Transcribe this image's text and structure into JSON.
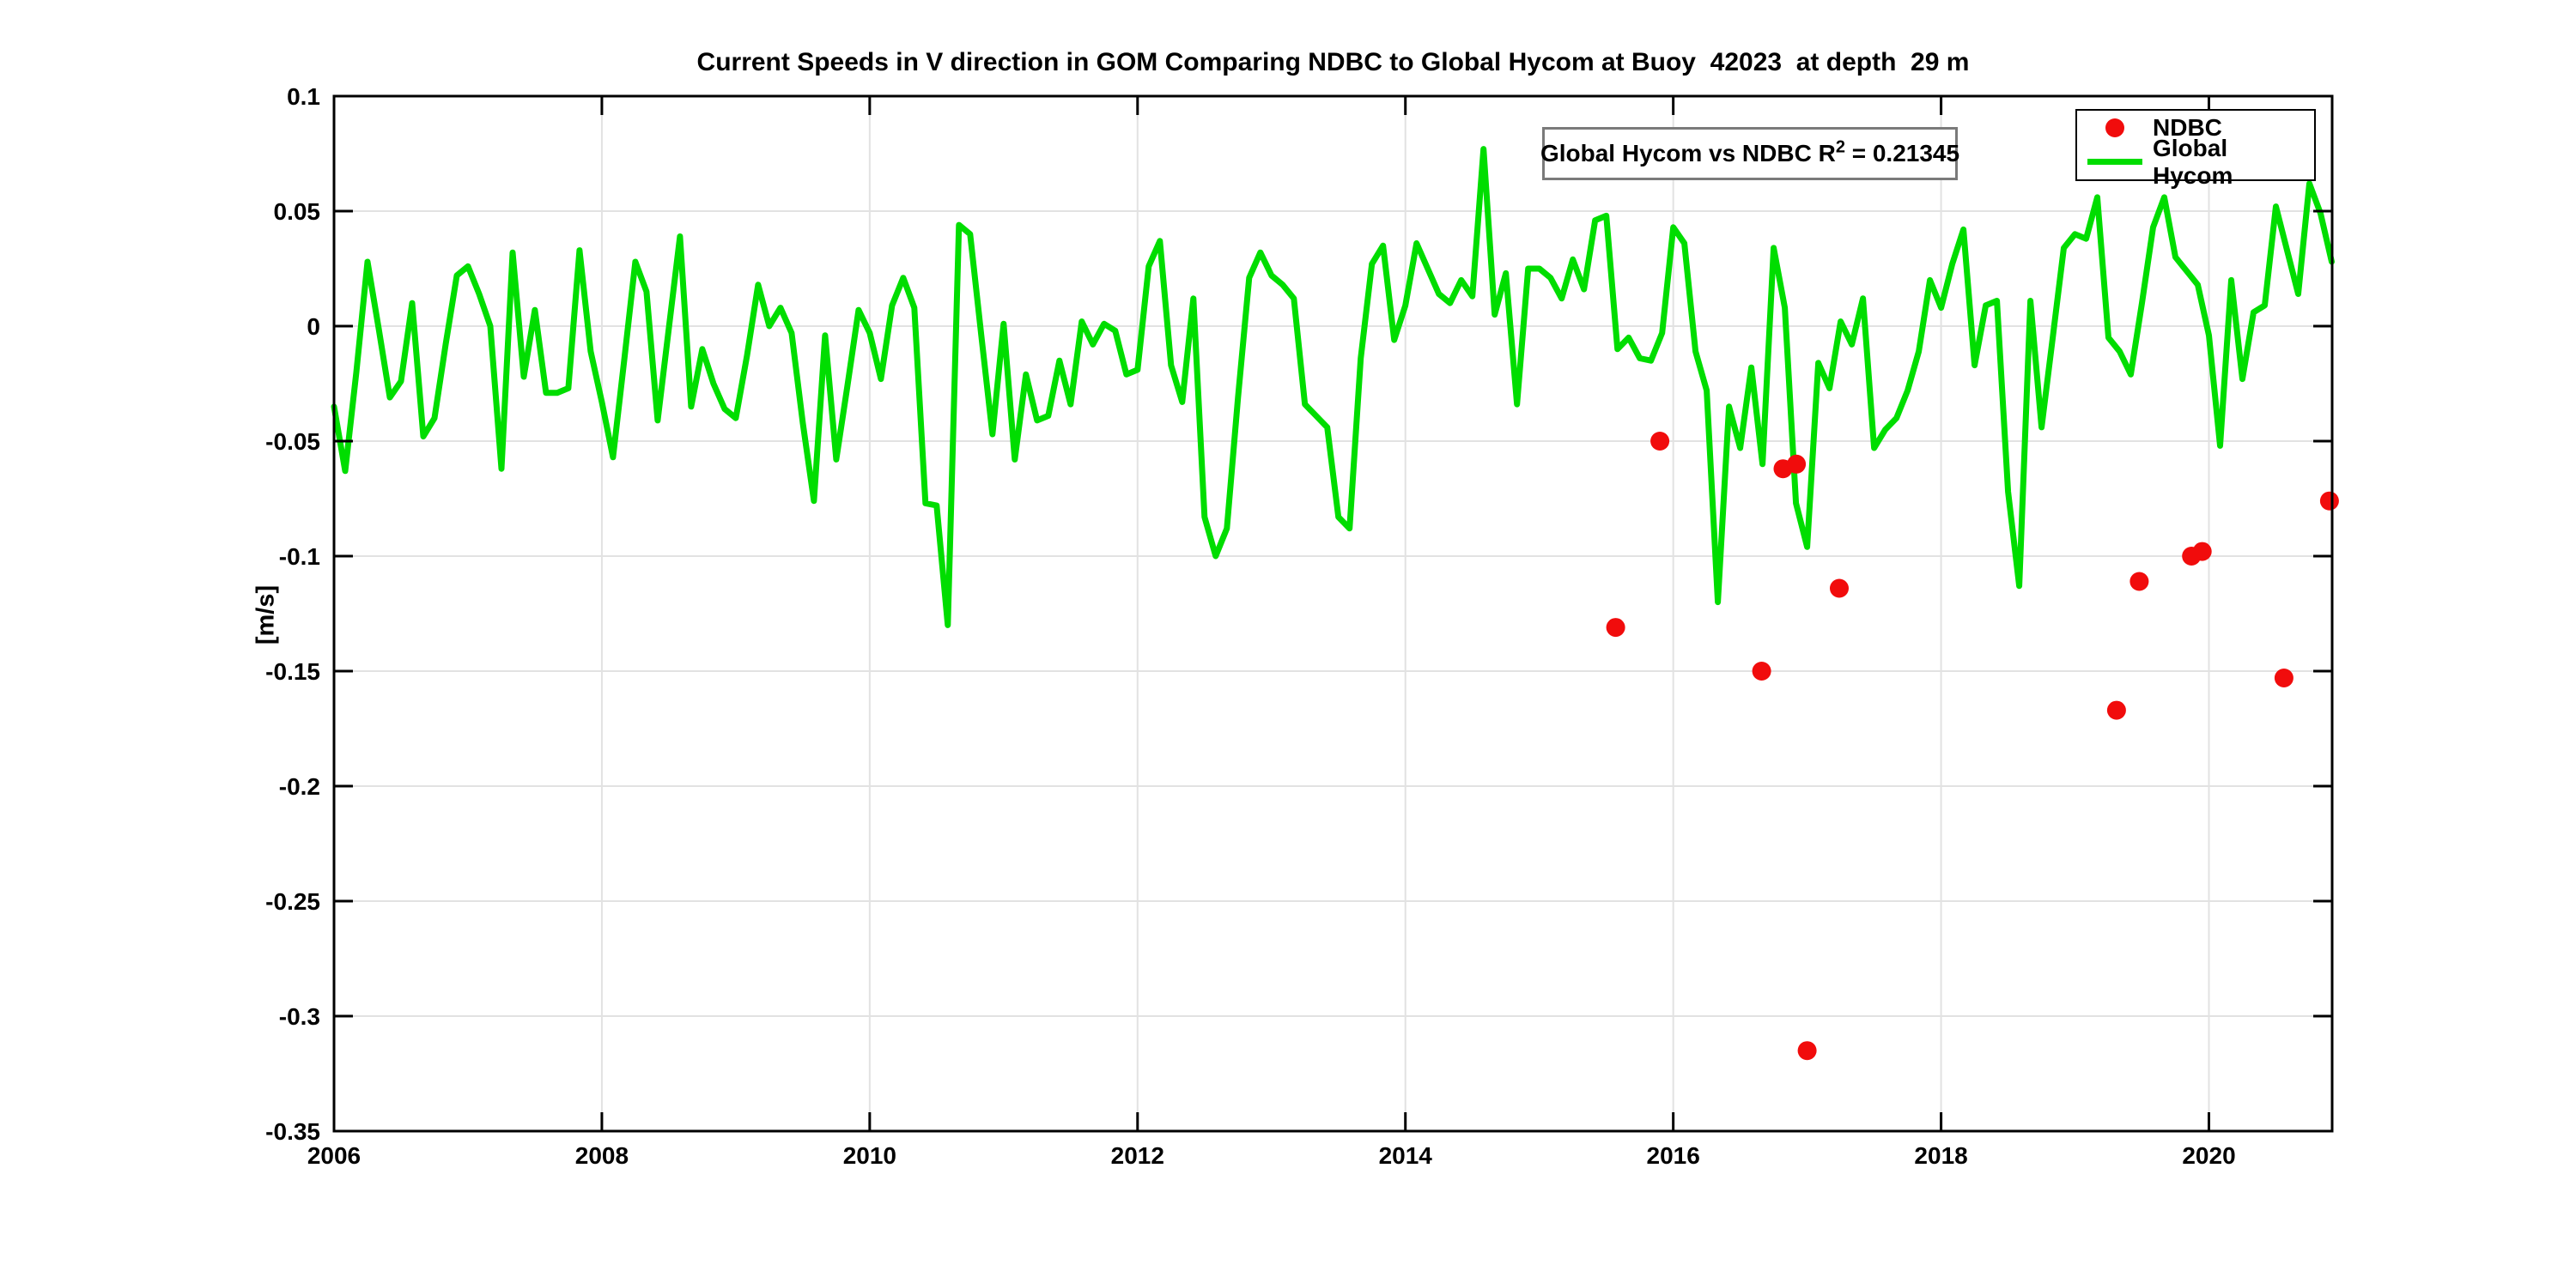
{
  "chart_data": {
    "type": "line+scatter",
    "title": "Current Speeds in V direction in GOM Comparing NDBC to Global Hycom at Buoy  42023  at depth  29 m",
    "xlabel": "",
    "ylabel": "[m/s]",
    "xlim": [
      2006,
      2020.92
    ],
    "ylim": [
      -0.35,
      0.1
    ],
    "x_ticks": [
      2006,
      2008,
      2010,
      2012,
      2014,
      2016,
      2018,
      2020
    ],
    "y_ticks": [
      0.1,
      0.05,
      0,
      -0.05,
      -0.1,
      -0.15,
      -0.2,
      -0.25,
      -0.3,
      -0.35
    ],
    "y_tick_labels": [
      "0.1",
      "0.05",
      "0",
      "-0.05",
      "-0.1",
      "-0.15",
      "-0.2",
      "-0.25",
      "-0.3",
      "-0.35"
    ],
    "grid": true,
    "legend_position": "top-right",
    "annotation": {
      "prefix": "Global Hycom vs NDBC R",
      "sup": "2",
      "suffix": " = 0.21345"
    },
    "series": [
      {
        "name": "NDBC",
        "type": "scatter",
        "color": "#f10c0c",
        "points": [
          [
            2015.57,
            -0.131
          ],
          [
            2015.9,
            -0.05
          ],
          [
            2016.66,
            -0.15
          ],
          [
            2016.82,
            -0.062
          ],
          [
            2016.92,
            -0.06
          ],
          [
            2017.0,
            -0.315
          ],
          [
            2017.24,
            -0.114
          ],
          [
            2019.31,
            -0.167
          ],
          [
            2019.48,
            -0.111
          ],
          [
            2019.87,
            -0.1
          ],
          [
            2019.95,
            -0.098
          ],
          [
            2020.56,
            -0.153
          ],
          [
            2020.9,
            -0.076
          ]
        ]
      },
      {
        "name": "Global Hycom",
        "type": "line",
        "color": "#00dd00",
        "x_start": 2006.0,
        "x_step": 0.08333,
        "values": [
          -0.035,
          -0.063,
          -0.02,
          0.028,
          -0.001,
          -0.031,
          -0.024,
          0.01,
          -0.048,
          -0.04,
          -0.008,
          0.022,
          0.026,
          0.014,
          0.0,
          -0.062,
          0.032,
          -0.022,
          0.007,
          -0.029,
          -0.029,
          -0.027,
          0.033,
          -0.011,
          -0.033,
          -0.057,
          -0.015,
          0.028,
          0.015,
          -0.041,
          -0.001,
          0.039,
          -0.035,
          -0.01,
          -0.025,
          -0.036,
          -0.04,
          -0.013,
          0.018,
          0.0,
          0.008,
          -0.003,
          -0.042,
          -0.076,
          -0.004,
          -0.058,
          -0.026,
          0.007,
          -0.003,
          -0.023,
          0.009,
          0.021,
          0.008,
          -0.077,
          -0.078,
          -0.13,
          0.044,
          0.04,
          -0.004,
          -0.047,
          0.001,
          -0.058,
          -0.021,
          -0.041,
          -0.039,
          -0.015,
          -0.034,
          0.002,
          -0.008,
          0.001,
          -0.002,
          -0.021,
          -0.019,
          0.026,
          0.037,
          -0.017,
          -0.033,
          0.012,
          -0.083,
          -0.1,
          -0.088,
          -0.031,
          0.021,
          0.032,
          0.022,
          0.018,
          0.012,
          -0.034,
          -0.039,
          -0.044,
          -0.083,
          -0.088,
          -0.014,
          0.027,
          0.035,
          -0.006,
          0.009,
          0.036,
          0.025,
          0.014,
          0.01,
          0.02,
          0.013,
          0.077,
          0.005,
          0.023,
          -0.034,
          0.025,
          0.025,
          0.021,
          0.012,
          0.029,
          0.016,
          0.046,
          0.048,
          -0.01,
          -0.005,
          -0.014,
          -0.015,
          -0.003,
          0.043,
          0.036,
          -0.011,
          -0.028,
          -0.12,
          -0.035,
          -0.053,
          -0.018,
          -0.06,
          0.034,
          0.008,
          -0.077,
          -0.096,
          -0.016,
          -0.027,
          0.002,
          -0.008,
          0.012,
          -0.053,
          -0.045,
          -0.04,
          -0.028,
          -0.011,
          0.02,
          0.008,
          0.027,
          0.042,
          -0.017,
          0.009,
          0.011,
          -0.072,
          -0.113,
          0.011,
          -0.044,
          -0.005,
          0.034,
          0.04,
          0.038,
          0.056,
          -0.005,
          -0.011,
          -0.021,
          0.01,
          0.043,
          0.056,
          0.03,
          0.024,
          0.018,
          -0.004,
          -0.052,
          0.02,
          -0.023,
          0.006,
          0.009,
          0.052,
          0.033,
          0.014,
          0.062,
          0.049,
          0.028
        ]
      }
    ],
    "colors": {
      "axis": "#000000",
      "grid": "#e2e2e2",
      "annotation_border": "#7a7a7a",
      "background": "#ffffff"
    }
  }
}
